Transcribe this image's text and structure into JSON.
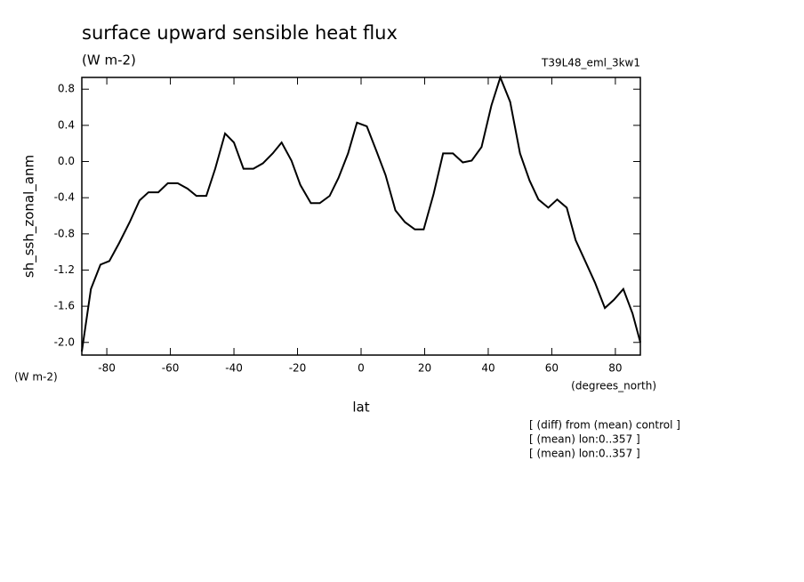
{
  "chart_data": {
    "type": "line",
    "title": "surface upward sensible heat flux",
    "subtitle": "(W m-2)",
    "run_label": "T39L48_eml_3kw1",
    "y_label": "sh_ssh_zonal_anm",
    "y_units": "(W m-2)",
    "x_units": "(degrees_north)",
    "x_label": "lat",
    "notes": [
      "[ (diff) from (mean) control ]",
      "[ (mean) lon:0..357 ]",
      "[ (mean) lon:0..357 ]"
    ],
    "x": [
      -87.86,
      -85.0,
      -82.0,
      -79.2,
      -76.1,
      -72.8,
      -69.7,
      -66.9,
      -63.8,
      -60.8,
      -57.7,
      -54.6,
      -51.8,
      -48.7,
      -45.9,
      -42.8,
      -40.0,
      -37.0,
      -33.9,
      -30.9,
      -27.8,
      -25.0,
      -21.9,
      -19.1,
      -15.8,
      -13.0,
      -9.9,
      -7.1,
      -4.1,
      -1.3,
      1.8,
      4.9,
      7.7,
      10.8,
      13.8,
      16.9,
      19.7,
      22.8,
      25.8,
      28.9,
      32.0,
      34.8,
      37.9,
      41.0,
      43.8,
      46.9,
      50.0,
      53.0,
      55.8,
      58.9,
      61.7,
      64.7,
      67.5,
      70.5,
      73.6,
      76.7,
      79.5,
      82.5,
      85.4,
      87.86
    ],
    "series": [
      {
        "color": "#000000",
        "values": [
          -2.1,
          -1.41,
          -1.14,
          -1.1,
          -0.9,
          -0.67,
          -0.43,
          -0.34,
          -0.34,
          -0.24,
          -0.24,
          -0.3,
          -0.38,
          -0.38,
          -0.08,
          0.31,
          0.21,
          -0.08,
          -0.08,
          -0.02,
          0.09,
          0.21,
          0.01,
          -0.26,
          -0.46,
          -0.46,
          -0.38,
          -0.18,
          0.09,
          0.43,
          0.39,
          0.11,
          -0.15,
          -0.54,
          -0.67,
          -0.75,
          -0.75,
          -0.36,
          0.09,
          0.09,
          -0.01,
          0.01,
          0.16,
          0.62,
          0.93,
          0.66,
          0.09,
          -0.21,
          -0.42,
          -0.51,
          -0.42,
          -0.51,
          -0.87,
          -1.1,
          -1.34,
          -1.62,
          -1.53,
          -1.41,
          -1.68,
          -2.0
        ]
      }
    ],
    "xlim": [
      -87.86,
      87.86
    ],
    "xticks": [
      -80,
      -60,
      -40,
      -20,
      0,
      20,
      40,
      60,
      80
    ],
    "ylim": [
      -2.14,
      0.93
    ],
    "yticks": [
      {
        "value": -2.0,
        "label": "-2.0"
      },
      -1.6,
      -1.2,
      -0.8,
      -0.4,
      {
        "value": 0.0,
        "label": "0.0"
      },
      0.4,
      0.8
    ]
  }
}
